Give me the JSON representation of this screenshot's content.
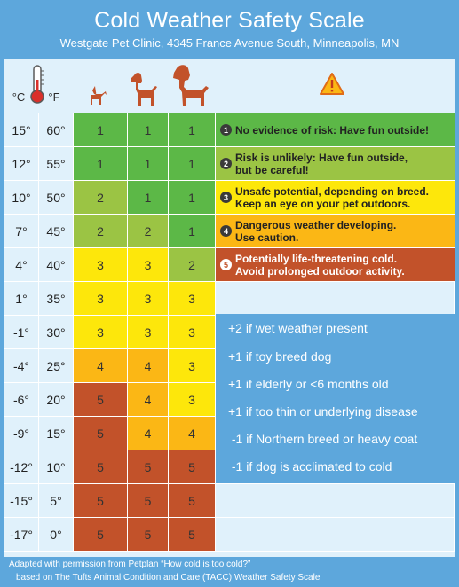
{
  "header": {
    "title": "Cold Weather Safety Scale",
    "subtitle": "Westgate Pet Clinic, 4345 France Avenue South, Minneapolis, MN"
  },
  "columns": {
    "celsius_label": "°C",
    "fahrenheit_label": "°F",
    "icons": [
      "thermometer-icon",
      "small-dog-icon",
      "medium-dog-icon",
      "large-dog-icon",
      "warning-icon"
    ]
  },
  "rows": [
    {
      "c": "15°",
      "f": "60°",
      "small": "1",
      "medium": "1",
      "large": "1"
    },
    {
      "c": "12°",
      "f": "55°",
      "small": "1",
      "medium": "1",
      "large": "1"
    },
    {
      "c": "10°",
      "f": "50°",
      "small": "2",
      "medium": "1",
      "large": "1"
    },
    {
      "c": "7°",
      "f": "45°",
      "small": "2",
      "medium": "2",
      "large": "1"
    },
    {
      "c": "4°",
      "f": "40°",
      "small": "3",
      "medium": "3",
      "large": "2"
    },
    {
      "c": "1°",
      "f": "35°",
      "small": "3",
      "medium": "3",
      "large": "3"
    },
    {
      "c": "-1°",
      "f": "30°",
      "small": "3",
      "medium": "3",
      "large": "3"
    },
    {
      "c": "-4°",
      "f": "25°",
      "small": "4",
      "medium": "4",
      "large": "3"
    },
    {
      "c": "-6°",
      "f": "20°",
      "small": "5",
      "medium": "4",
      "large": "3"
    },
    {
      "c": "-9°",
      "f": "15°",
      "small": "5",
      "medium": "4",
      "large": "4"
    },
    {
      "c": "-12°",
      "f": "10°",
      "small": "5",
      "medium": "5",
      "large": "5"
    },
    {
      "c": "-15°",
      "f": "5°",
      "small": "5",
      "medium": "5",
      "large": "5"
    },
    {
      "c": "-17°",
      "f": "0°",
      "small": "5",
      "medium": "5",
      "large": "5"
    }
  ],
  "risk_colors": {
    "1": "#5cb847",
    "2": "#9bc444",
    "3": "#fde70b",
    "4": "#fbb715",
    "5": "#c2522a"
  },
  "descriptions": [
    {
      "num": "1",
      "text": "No evidence of risk: Have fun outside!"
    },
    {
      "num": "2",
      "line1": "Risk is unlikely: Have fun outside,",
      "line2": "but be careful!"
    },
    {
      "num": "3",
      "line1": "Unsafe potential, depending on breed.",
      "line2": "Keep an eye on your pet outdoors."
    },
    {
      "num": "4",
      "line1": "Dangerous weather developing.",
      "line2": "Use caution."
    },
    {
      "num": "5",
      "line1": "Potentially life-threatening cold.",
      "line2": "Avoid prolonged outdoor activity."
    }
  ],
  "adjustments": [
    "+2 if wet weather present",
    "+1 if toy breed dog",
    "+1 if  elderly or <6 months old",
    "+1 if too thin or underlying disease",
    " -1 if Northern breed or heavy coat",
    " -1 if dog is acclimated to cold"
  ],
  "footer": {
    "line1": "Adapted with permission from Petplan “How cold is too cold?”",
    "line2": "based on The Tufts Animal Condition and Care (TACC) Weather Safety Scale"
  }
}
